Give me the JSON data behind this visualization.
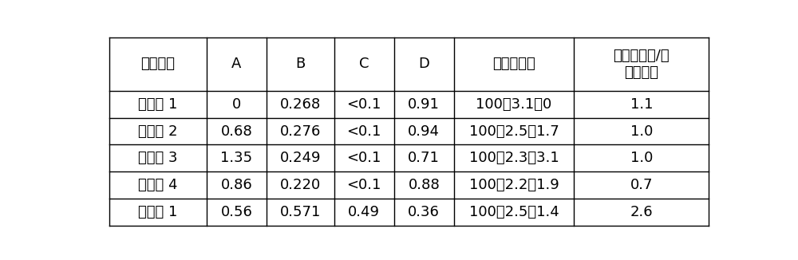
{
  "headers": [
    "样品来源",
    "A",
    "B",
    "C",
    "D",
    "硅：钛：锡",
    "表面硅钛比/体\n相硅钛比"
  ],
  "rows": [
    [
      "对比例 1",
      "0",
      "0.268",
      "<0.1",
      "0.91",
      "100：3.1：0",
      "1.1"
    ],
    [
      "对比例 2",
      "0.68",
      "0.276",
      "<0.1",
      "0.94",
      "100：2.5：1.7",
      "1.0"
    ],
    [
      "对比例 3",
      "1.35",
      "0.249",
      "<0.1",
      "0.71",
      "100：2.3：3.1",
      "1.0"
    ],
    [
      "对比例 4",
      "0.86",
      "0.220",
      "<0.1",
      "0.88",
      "100：2.2：1.9",
      "0.7"
    ],
    [
      "实施例 1",
      "0.56",
      "0.571",
      "0.49",
      "0.36",
      "100：2.5：1.4",
      "2.6"
    ]
  ],
  "col_widths_rel": [
    1.3,
    0.8,
    0.9,
    0.8,
    0.8,
    1.6,
    1.8
  ],
  "background_color": "#ffffff",
  "border_color": "#000000",
  "text_color": "#000000",
  "font_size": 13,
  "header_font_size": 13,
  "fig_width": 10.0,
  "fig_height": 3.26,
  "dpi": 100
}
